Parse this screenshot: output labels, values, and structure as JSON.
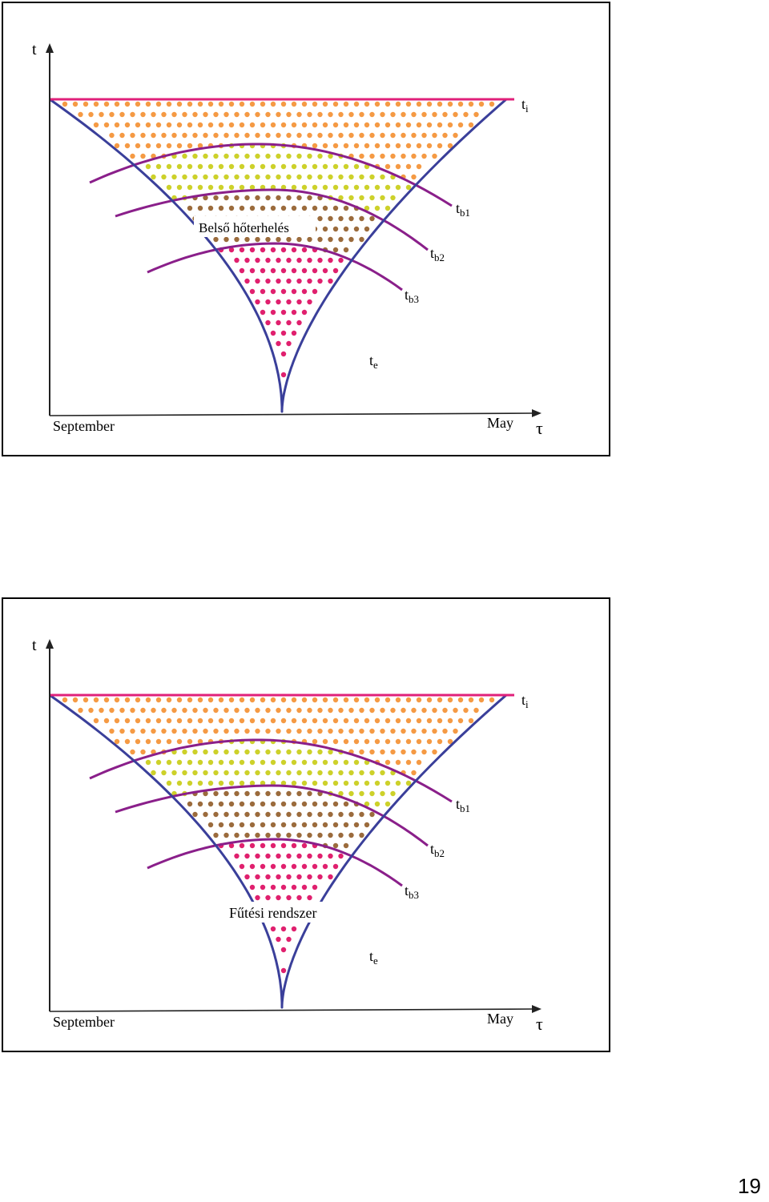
{
  "colors": {
    "axis": "#222222",
    "outline": "#3a3f9a",
    "boundary_line": "#8a1f8a",
    "top_line": "#e0207a",
    "zone_top": "#f59a44",
    "zone_b1": "#cdd12a",
    "zone_b2": "#9b6b3c",
    "zone_bottom": "#e0206e"
  },
  "slides": [
    {
      "y_axis_label": "t",
      "x_axis_label": "τ",
      "x_start_label": "September",
      "x_end_label": "May",
      "curves": {
        "ti": {
          "base": "t",
          "sub": "i"
        },
        "tb1": {
          "base": "t",
          "sub": "b1"
        },
        "tb2": {
          "base": "t",
          "sub": "b2"
        },
        "tb3": {
          "base": "t",
          "sub": "b3"
        },
        "te": {
          "base": "t",
          "sub": "e"
        }
      },
      "callout": "Belső hőterhelés",
      "callout_font": "sans"
    },
    {
      "y_axis_label": "t",
      "x_axis_label": "τ",
      "x_start_label": "September",
      "x_end_label": "May",
      "curves": {
        "ti": {
          "base": "t",
          "sub": "i"
        },
        "tb1": {
          "base": "t",
          "sub": "b1"
        },
        "tb2": {
          "base": "t",
          "sub": "b2"
        },
        "tb3": {
          "base": "t",
          "sub": "b3"
        },
        "te": {
          "base": "t",
          "sub": "e"
        }
      },
      "callout": "Fűtési rendszer",
      "callout_font": "serif"
    }
  ],
  "page_number": "19"
}
